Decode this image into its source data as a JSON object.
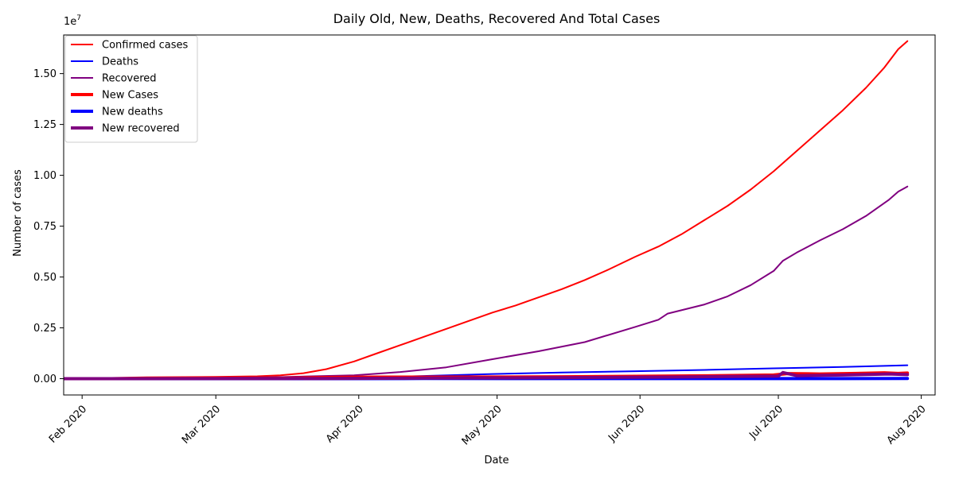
{
  "chart_data": {
    "type": "line",
    "title": "Daily Old, New, Deaths, Recovered And Total Cases",
    "xlabel": "Date",
    "ylabel": "Number of cases",
    "y_offset_text": "1e7",
    "x_ticks": [
      {
        "date": "2020-02-01",
        "label": "Feb 2020"
      },
      {
        "date": "2020-03-01",
        "label": "Mar 2020"
      },
      {
        "date": "2020-04-01",
        "label": "Apr 2020"
      },
      {
        "date": "2020-05-01",
        "label": "May 2020"
      },
      {
        "date": "2020-06-01",
        "label": "Jun 2020"
      },
      {
        "date": "2020-07-01",
        "label": "Jul 2020"
      },
      {
        "date": "2020-08-01",
        "label": "Aug 2020"
      }
    ],
    "y_ticks": [
      {
        "value": 0,
        "label": "0.00"
      },
      {
        "value": 2500000,
        "label": "0.25"
      },
      {
        "value": 5000000,
        "label": "0.50"
      },
      {
        "value": 7500000,
        "label": "0.75"
      },
      {
        "value": 10000000,
        "label": "1.00"
      },
      {
        "value": 12500000,
        "label": "1.25"
      },
      {
        "value": 15000000,
        "label": "1.50"
      }
    ],
    "xlim": [
      "2020-01-28",
      "2020-08-04"
    ],
    "ylim": [
      -800000,
      16900000
    ],
    "grid": false,
    "legend_position": "top-left",
    "series": [
      {
        "name": "Confirmed cases",
        "color": "#ff0000",
        "width": "thin",
        "points": [
          [
            "2020-01-22",
            555
          ],
          [
            "2020-02-01",
            12000
          ],
          [
            "2020-02-15",
            69000
          ],
          [
            "2020-03-01",
            88000
          ],
          [
            "2020-03-10",
            120000
          ],
          [
            "2020-03-15",
            170000
          ],
          [
            "2020-03-20",
            270000
          ],
          [
            "2020-03-25",
            470000
          ],
          [
            "2020-03-31",
            850000
          ],
          [
            "2020-04-05",
            1250000
          ],
          [
            "2020-04-10",
            1650000
          ],
          [
            "2020-04-15",
            2050000
          ],
          [
            "2020-04-20",
            2450000
          ],
          [
            "2020-04-25",
            2850000
          ],
          [
            "2020-04-30",
            3250000
          ],
          [
            "2020-05-05",
            3600000
          ],
          [
            "2020-05-10",
            4000000
          ],
          [
            "2020-05-15",
            4400000
          ],
          [
            "2020-05-20",
            4850000
          ],
          [
            "2020-05-25",
            5350000
          ],
          [
            "2020-05-31",
            6000000
          ],
          [
            "2020-06-05",
            6500000
          ],
          [
            "2020-06-10",
            7100000
          ],
          [
            "2020-06-15",
            7800000
          ],
          [
            "2020-06-20",
            8500000
          ],
          [
            "2020-06-25",
            9300000
          ],
          [
            "2020-06-30",
            10200000
          ],
          [
            "2020-07-05",
            11200000
          ],
          [
            "2020-07-10",
            12200000
          ],
          [
            "2020-07-15",
            13200000
          ],
          [
            "2020-07-20",
            14300000
          ],
          [
            "2020-07-24",
            15300000
          ],
          [
            "2020-07-27",
            16200000
          ],
          [
            "2020-07-29",
            16600000
          ]
        ]
      },
      {
        "name": "Deaths",
        "color": "#0000ff",
        "width": "thin",
        "points": [
          [
            "2020-01-22",
            17
          ],
          [
            "2020-02-15",
            1500
          ],
          [
            "2020-03-01",
            3000
          ],
          [
            "2020-03-15",
            6500
          ],
          [
            "2020-03-31",
            42000
          ],
          [
            "2020-04-15",
            135000
          ],
          [
            "2020-04-30",
            230000
          ],
          [
            "2020-05-15",
            300000
          ],
          [
            "2020-05-31",
            370000
          ],
          [
            "2020-06-15",
            430000
          ],
          [
            "2020-06-30",
            510000
          ],
          [
            "2020-07-15",
            580000
          ],
          [
            "2020-07-29",
            660000
          ]
        ]
      },
      {
        "name": "Recovered",
        "color": "#800080",
        "width": "thin",
        "points": [
          [
            "2020-01-22",
            28
          ],
          [
            "2020-02-15",
            9000
          ],
          [
            "2020-03-01",
            42000
          ],
          [
            "2020-03-15",
            78000
          ],
          [
            "2020-03-31",
            170000
          ],
          [
            "2020-04-10",
            330000
          ],
          [
            "2020-04-20",
            560000
          ],
          [
            "2020-04-30",
            960000
          ],
          [
            "2020-05-10",
            1350000
          ],
          [
            "2020-05-20",
            1800000
          ],
          [
            "2020-05-31",
            2550000
          ],
          [
            "2020-06-05",
            2900000
          ],
          [
            "2020-06-07",
            3200000
          ],
          [
            "2020-06-15",
            3650000
          ],
          [
            "2020-06-20",
            4050000
          ],
          [
            "2020-06-25",
            4600000
          ],
          [
            "2020-06-30",
            5300000
          ],
          [
            "2020-07-02",
            5800000
          ],
          [
            "2020-07-05",
            6200000
          ],
          [
            "2020-07-10",
            6800000
          ],
          [
            "2020-07-15",
            7350000
          ],
          [
            "2020-07-20",
            8000000
          ],
          [
            "2020-07-25",
            8800000
          ],
          [
            "2020-07-27",
            9200000
          ],
          [
            "2020-07-29",
            9450000
          ]
        ]
      },
      {
        "name": "New Cases",
        "color": "#ff0000",
        "width": "thick",
        "points": [
          [
            "2020-01-22",
            0
          ],
          [
            "2020-03-01",
            2000
          ],
          [
            "2020-03-15",
            15000
          ],
          [
            "2020-03-25",
            60000
          ],
          [
            "2020-04-05",
            80000
          ],
          [
            "2020-04-15",
            80000
          ],
          [
            "2020-04-30",
            85000
          ],
          [
            "2020-05-15",
            95000
          ],
          [
            "2020-05-31",
            120000
          ],
          [
            "2020-06-15",
            140000
          ],
          [
            "2020-06-30",
            180000
          ],
          [
            "2020-07-03",
            250000
          ],
          [
            "2020-07-10",
            230000
          ],
          [
            "2020-07-18",
            260000
          ],
          [
            "2020-07-24",
            290000
          ],
          [
            "2020-07-27",
            260000
          ],
          [
            "2020-07-29",
            280000
          ]
        ]
      },
      {
        "name": "New deaths",
        "color": "#0000ff",
        "width": "thick",
        "points": [
          [
            "2020-01-22",
            0
          ],
          [
            "2020-03-20",
            2000
          ],
          [
            "2020-04-15",
            8000
          ],
          [
            "2020-05-15",
            5000
          ],
          [
            "2020-06-15",
            5000
          ],
          [
            "2020-07-15",
            6000
          ],
          [
            "2020-07-29",
            7000
          ]
        ]
      },
      {
        "name": "New recovered",
        "color": "#800080",
        "width": "thick",
        "points": [
          [
            "2020-01-22",
            0
          ],
          [
            "2020-03-15",
            5000
          ],
          [
            "2020-04-01",
            15000
          ],
          [
            "2020-04-15",
            30000
          ],
          [
            "2020-05-01",
            40000
          ],
          [
            "2020-05-20",
            60000
          ],
          [
            "2020-06-07",
            80000
          ],
          [
            "2020-06-20",
            110000
          ],
          [
            "2020-07-01",
            130000
          ],
          [
            "2020-07-02",
            300000
          ],
          [
            "2020-07-05",
            150000
          ],
          [
            "2020-07-15",
            180000
          ],
          [
            "2020-07-25",
            230000
          ],
          [
            "2020-07-29",
            200000
          ]
        ]
      }
    ]
  }
}
